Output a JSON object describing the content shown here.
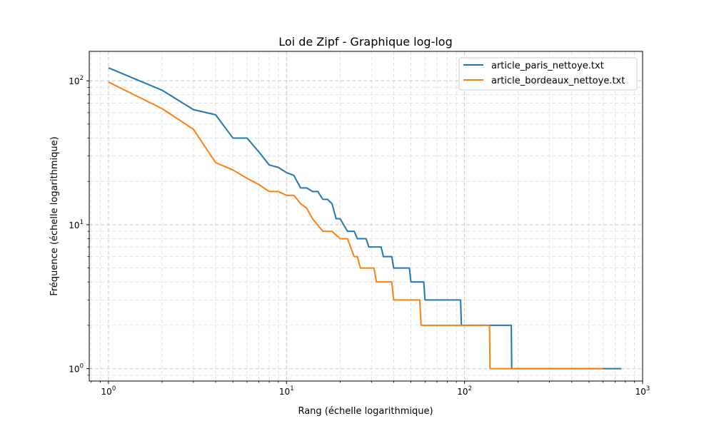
{
  "chart_data": {
    "type": "line",
    "title": "Loi de Zipf - Graphique log-log",
    "xlabel": "Rang (échelle logarithmique)",
    "ylabel": "Fréquence (échelle logarithmique)",
    "xscale": "log",
    "yscale": "log",
    "xlim": [
      0.78,
      1000
    ],
    "ylim": [
      0.82,
      160
    ],
    "xticks": [
      {
        "value": 1,
        "base": "10",
        "exp": "0"
      },
      {
        "value": 10,
        "base": "10",
        "exp": "1"
      },
      {
        "value": 100,
        "base": "10",
        "exp": "2"
      },
      {
        "value": 1000,
        "base": "10",
        "exp": "3"
      }
    ],
    "yticks": [
      {
        "value": 1,
        "base": "10",
        "exp": "0"
      },
      {
        "value": 10,
        "base": "10",
        "exp": "1"
      },
      {
        "value": 100,
        "base": "10",
        "exp": "2"
      }
    ],
    "grid": true,
    "legend_position": "top-right",
    "series": [
      {
        "name": "article_paris_nettoye.txt",
        "color": "#1f77b4",
        "points": [
          [
            1,
            123
          ],
          [
            2,
            86
          ],
          [
            3,
            63
          ],
          [
            4,
            58
          ],
          [
            5,
            40
          ],
          [
            6,
            40
          ],
          [
            7,
            32
          ],
          [
            8,
            26
          ],
          [
            9,
            25
          ],
          [
            10,
            23
          ],
          [
            11,
            22
          ],
          [
            12,
            18
          ],
          [
            13,
            18
          ],
          [
            14,
            17
          ],
          [
            15,
            17
          ],
          [
            16,
            15
          ],
          [
            17,
            15
          ],
          [
            18,
            14
          ],
          [
            19,
            11
          ],
          [
            20,
            11
          ],
          [
            22,
            9
          ],
          [
            24,
            9
          ],
          [
            25,
            8
          ],
          [
            28,
            8
          ],
          [
            29,
            7
          ],
          [
            34,
            7
          ],
          [
            35,
            6
          ],
          [
            39,
            6
          ],
          [
            40,
            5
          ],
          [
            49,
            5
          ],
          [
            50,
            4
          ],
          [
            59,
            4
          ],
          [
            60,
            3
          ],
          [
            95,
            3
          ],
          [
            96,
            2
          ],
          [
            183,
            2
          ],
          [
            184,
            1
          ],
          [
            760,
            1
          ]
        ]
      },
      {
        "name": "article_bordeaux_nettoye.txt",
        "color": "#ff7f0e",
        "points": [
          [
            1,
            98
          ],
          [
            2,
            64
          ],
          [
            3,
            46
          ],
          [
            4,
            27
          ],
          [
            5,
            24
          ],
          [
            6,
            21
          ],
          [
            7,
            19
          ],
          [
            8,
            17
          ],
          [
            9,
            17
          ],
          [
            10,
            16
          ],
          [
            11,
            16
          ],
          [
            12,
            14
          ],
          [
            13,
            13
          ],
          [
            14,
            11
          ],
          [
            16,
            9
          ],
          [
            18,
            9
          ],
          [
            20,
            8
          ],
          [
            22,
            8
          ],
          [
            24,
            6
          ],
          [
            25,
            6
          ],
          [
            26,
            5
          ],
          [
            31,
            5
          ],
          [
            32,
            4
          ],
          [
            39,
            4
          ],
          [
            40,
            3
          ],
          [
            56,
            3
          ],
          [
            57,
            2
          ],
          [
            138,
            2
          ],
          [
            139,
            1
          ],
          [
            600,
            1
          ]
        ]
      }
    ]
  }
}
